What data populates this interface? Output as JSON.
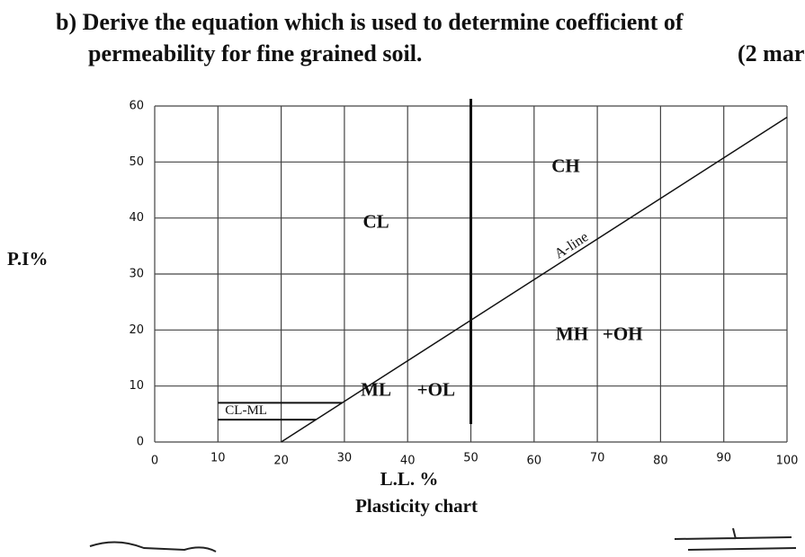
{
  "question": {
    "line1": "b) Derive the equation which is used to determine coefficient of",
    "line2": "permeability for fine grained soil.",
    "marks": "(2 mar"
  },
  "chart_data": {
    "type": "line",
    "xlabel": "L.L. %",
    "ylabel": "P.I%",
    "caption": "Plasticity chart",
    "x": [
      20,
      100
    ],
    "series": [
      {
        "name": "A-line",
        "color": "#111",
        "values": [
          0,
          58
        ]
      }
    ],
    "xlim": [
      0,
      100
    ],
    "ylim": [
      0,
      60
    ],
    "xticks": [
      0,
      10,
      20,
      30,
      40,
      50,
      60,
      70,
      80,
      90,
      100
    ],
    "yticks": [
      0,
      10,
      20,
      30,
      40,
      50,
      60
    ],
    "grid": true,
    "vline": 50,
    "cl_ml": {
      "label": "CL-ML",
      "x_start": 10,
      "pi": [
        7,
        4
      ]
    },
    "annotations": [
      {
        "text": "CH",
        "x": 65,
        "y": 49
      },
      {
        "text": "CL",
        "x": 35,
        "y": 39
      },
      {
        "text": "MH",
        "x": 66,
        "y": 19
      },
      {
        "text": "+OH",
        "x": 74,
        "y": 19
      },
      {
        "text": "ML",
        "x": 35,
        "y": 9
      },
      {
        "text": "+OL",
        "x": 44.5,
        "y": 9
      }
    ]
  }
}
